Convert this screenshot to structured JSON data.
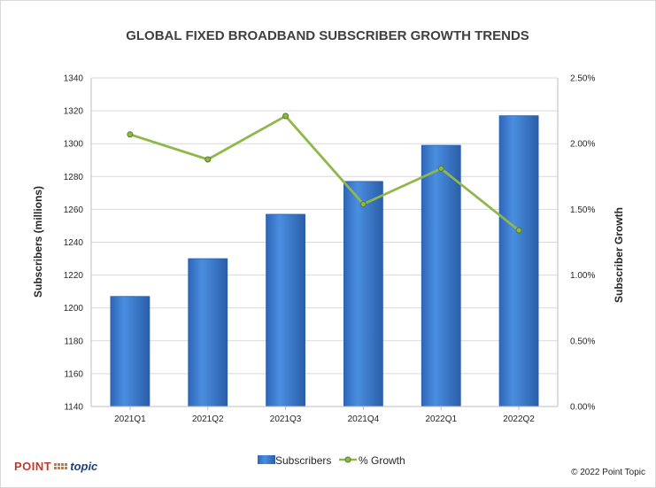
{
  "chart_data": {
    "type": "bar",
    "title": "GLOBAL FIXED BROADBAND SUBSCRIBER GROWTH TRENDS",
    "categories": [
      "2021Q1",
      "2021Q2",
      "2021Q3",
      "2021Q4",
      "2022Q1",
      "2022Q2"
    ],
    "series": [
      {
        "name": "Subscribers",
        "type": "bar",
        "axis": "left",
        "values": [
          1207,
          1230,
          1257,
          1277,
          1299,
          1317
        ]
      },
      {
        "name": "% Growth",
        "type": "line",
        "axis": "right",
        "values": [
          2.07,
          1.88,
          2.21,
          1.54,
          1.81,
          1.34
        ]
      }
    ],
    "ylabel": "Subscribers (millions)",
    "y2label": "Subscriber Growth",
    "ylim": [
      1140,
      1340
    ],
    "yticks": [
      "1140",
      "1160",
      "1180",
      "1200",
      "1220",
      "1240",
      "1260",
      "1280",
      "1300",
      "1320",
      "1340"
    ],
    "y2lim": [
      0,
      2.5
    ],
    "y2ticks": [
      "0.00%",
      "0.50%",
      "1.00%",
      "1.50%",
      "2.00%",
      "2.50%"
    ],
    "grid": true,
    "legend_position": "bottom-center",
    "colors": {
      "bar": "#3a78c8",
      "bar_dark": "#2a5ea8",
      "line": "#8fb84a",
      "grid": "#d9d9d9"
    }
  },
  "footer": {
    "logo_point": "POINT",
    "logo_topic": "topic",
    "copyright": "© 2022 Point Topic"
  }
}
